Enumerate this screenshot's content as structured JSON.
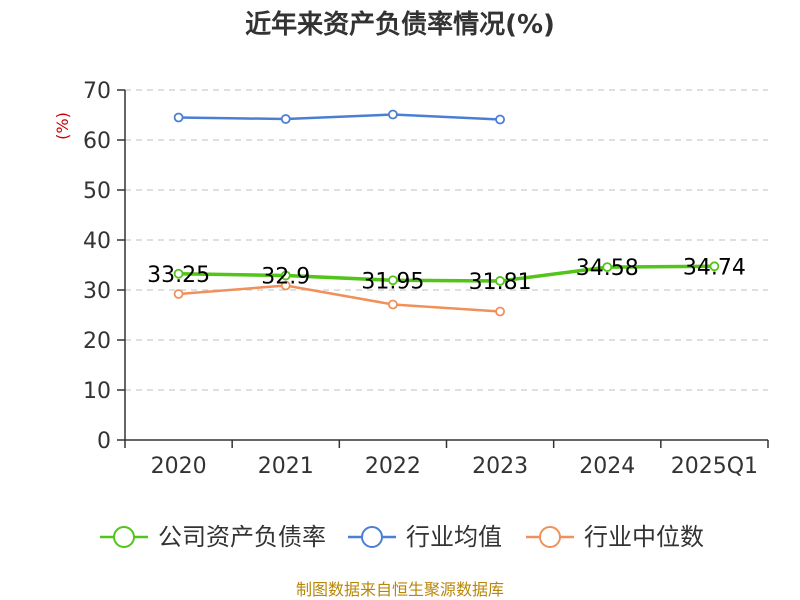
{
  "chart_data": {
    "type": "line",
    "title": "近年来资产负债率情况(%)",
    "ylabel": "(%)",
    "ylim": [
      0,
      70
    ],
    "yticks": [
      0,
      10,
      20,
      30,
      40,
      50,
      60,
      70
    ],
    "categories": [
      "2020",
      "2021",
      "2022",
      "2023",
      "2024",
      "2025Q1"
    ],
    "grid": true,
    "legend_position": "bottom",
    "series": [
      {
        "name": "公司资产负债率",
        "color": "#52c41a",
        "values": [
          33.25,
          32.9,
          31.95,
          31.81,
          34.58,
          34.74
        ],
        "labels": [
          "33.25",
          "32.9",
          "31.95",
          "31.81",
          "34.58",
          "34.74"
        ]
      },
      {
        "name": "行业均值",
        "color": "#4a7fd4",
        "values": [
          64.5,
          64.2,
          65.1,
          64.1,
          null,
          null
        ]
      },
      {
        "name": "行业中位数",
        "color": "#f0905a",
        "values": [
          29.2,
          30.9,
          27.1,
          25.7,
          null,
          null
        ]
      }
    ],
    "source": "制图数据来自恒生聚源数据库"
  }
}
